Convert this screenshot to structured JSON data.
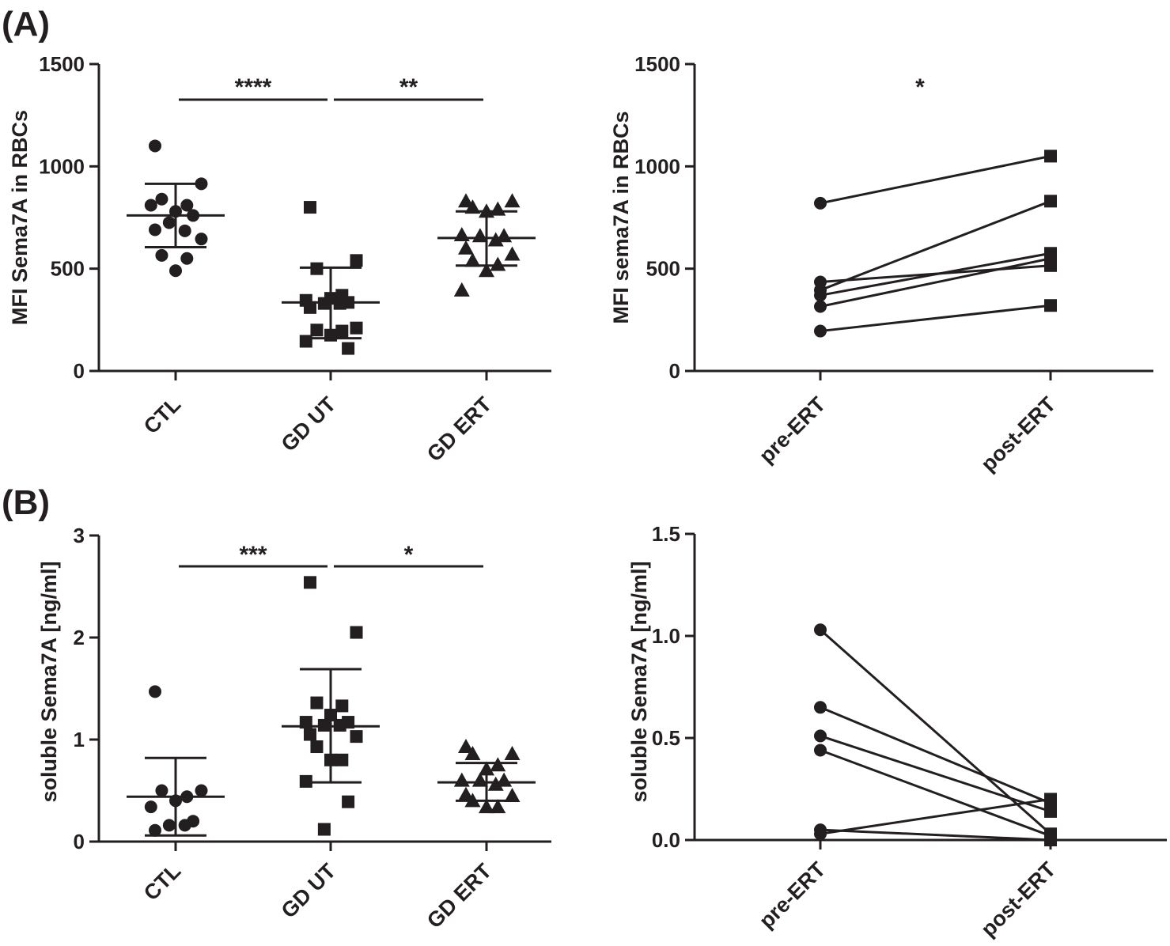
{
  "panels": {
    "A": "(A)",
    "B": "(B)"
  },
  "colors": {
    "ink": "#231f20",
    "background": "#ffffff"
  },
  "chart_data": [
    {
      "id": "A-left",
      "type": "scatter",
      "subtype": "dot-plot-mean-sd",
      "ylabel": "MFI Sema7A in RBCs",
      "xlabel": "",
      "ylim": [
        0,
        1500
      ],
      "yticks": [
        0,
        500,
        1000,
        1500
      ],
      "ytick_labels": [
        "0",
        "500",
        "1000",
        "1500"
      ],
      "categories": [
        "CTL",
        "GD UT",
        "GD ERT"
      ],
      "groups": [
        {
          "name": "CTL",
          "marker": "circle",
          "mean": 760,
          "sd_low": 605,
          "sd_high": 915,
          "points": [
            1100,
            915,
            840,
            810,
            780,
            810,
            760,
            725,
            685,
            690,
            645,
            565,
            550,
            490
          ]
        },
        {
          "name": "GD UT",
          "marker": "square",
          "mean": 335,
          "sd_low": 160,
          "sd_high": 505,
          "points": [
            800,
            540,
            500,
            370,
            355,
            345,
            335,
            330,
            330,
            310,
            210,
            200,
            195,
            175,
            145,
            110
          ]
        },
        {
          "name": "GD ERT",
          "marker": "triangle",
          "mean": 650,
          "sd_low": 515,
          "sd_high": 780,
          "points": [
            830,
            830,
            800,
            790,
            780,
            665,
            660,
            660,
            640,
            600,
            570,
            540,
            520,
            490,
            395
          ]
        }
      ],
      "significance": [
        {
          "from": "CTL",
          "to": "GD UT",
          "label": "****"
        },
        {
          "from": "GD UT",
          "to": "GD ERT",
          "label": "**"
        }
      ]
    },
    {
      "id": "A-right",
      "type": "line",
      "subtype": "paired",
      "ylabel": "MFI sema7A in RBCs",
      "xlabel": "",
      "ylim": [
        0,
        1500
      ],
      "yticks": [
        0,
        500,
        1000,
        1500
      ],
      "ytick_labels": [
        "0",
        "500",
        "1000",
        "1500"
      ],
      "categories": [
        "pre-ERT",
        "post-ERT"
      ],
      "pairs": [
        [
          820,
          1050
        ],
        [
          435,
          515
        ],
        [
          395,
          830
        ],
        [
          370,
          575
        ],
        [
          315,
          550
        ],
        [
          195,
          320
        ]
      ],
      "significance": [
        {
          "label": "*"
        }
      ]
    },
    {
      "id": "B-left",
      "type": "scatter",
      "subtype": "dot-plot-mean-sd",
      "ylabel": "soluble Sema7A [ng/ml]",
      "xlabel": "",
      "ylim": [
        0,
        3
      ],
      "yticks": [
        0,
        1,
        2,
        3
      ],
      "ytick_labels": [
        "0",
        "1",
        "2",
        "3"
      ],
      "categories": [
        "CTL",
        "GD UT",
        "GD ERT"
      ],
      "groups": [
        {
          "name": "CTL",
          "marker": "circle",
          "mean": 0.44,
          "sd_low": 0.06,
          "sd_high": 0.82,
          "points": [
            1.47,
            0.5,
            0.5,
            0.44,
            0.4,
            0.34,
            0.2,
            0.16,
            0.16,
            0.11
          ]
        },
        {
          "name": "GD UT",
          "marker": "square",
          "mean": 1.13,
          "sd_low": 0.58,
          "sd_high": 1.69,
          "points": [
            2.54,
            2.05,
            1.36,
            1.33,
            1.24,
            1.17,
            1.17,
            1.14,
            1.14,
            1.05,
            1.03,
            0.93,
            0.8,
            0.8,
            0.59,
            0.39,
            0.12
          ]
        },
        {
          "name": "GD ERT",
          "marker": "triangle",
          "mean": 0.58,
          "sd_low": 0.4,
          "sd_high": 0.77,
          "points": [
            0.93,
            0.86,
            0.86,
            0.75,
            0.71,
            0.6,
            0.6,
            0.6,
            0.56,
            0.46,
            0.45,
            0.4,
            0.34,
            0.34
          ]
        }
      ],
      "significance": [
        {
          "from": "CTL",
          "to": "GD UT",
          "label": "***"
        },
        {
          "from": "GD UT",
          "to": "GD ERT",
          "label": "*"
        }
      ]
    },
    {
      "id": "B-right",
      "type": "line",
      "subtype": "paired",
      "ylabel": "soluble Sema7A [ng/ml]",
      "xlabel": "",
      "ylim": [
        0,
        1.5
      ],
      "yticks": [
        0,
        0.5,
        1.0,
        1.5
      ],
      "ytick_labels": [
        "0.0",
        "0.5",
        "1.0",
        "1.5"
      ],
      "categories": [
        "pre-ERT",
        "post-ERT"
      ],
      "pairs": [
        [
          1.03,
          0.03
        ],
        [
          0.65,
          0.18
        ],
        [
          0.51,
          0.14
        ],
        [
          0.44,
          0.02
        ],
        [
          0.05,
          0.0
        ],
        [
          0.03,
          0.2
        ]
      ],
      "significance": []
    }
  ]
}
